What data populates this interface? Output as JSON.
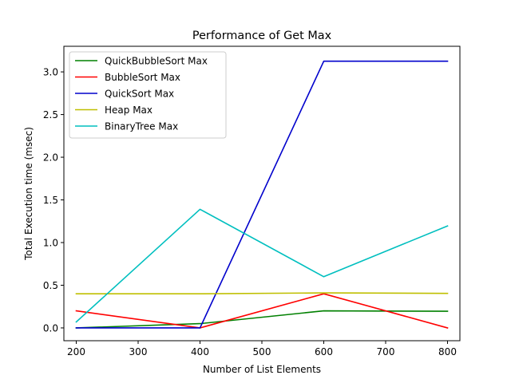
{
  "chart_data": {
    "type": "line",
    "title": "Performance of Get Max",
    "xlabel": "Number of List Elements",
    "ylabel": "Total Execution time (msec)",
    "x": [
      200,
      400,
      600,
      800
    ],
    "xlim": [
      180,
      820
    ],
    "ylim": [
      -0.15,
      3.3
    ],
    "xticks": [
      200,
      300,
      400,
      500,
      600,
      700,
      800
    ],
    "yticks": [
      0.0,
      0.5,
      1.0,
      1.5,
      2.0,
      2.5,
      3.0
    ],
    "xtick_labels": [
      "200",
      "300",
      "400",
      "500",
      "600",
      "700",
      "800"
    ],
    "ytick_labels": [
      "0.0",
      "0.5",
      "1.0",
      "1.5",
      "2.0",
      "2.5",
      "3.0"
    ],
    "grid": false,
    "legend": "top-left",
    "series": [
      {
        "name": "QuickBubbleSort Max",
        "color": "#008000",
        "values": [
          0.0,
          0.05,
          0.2,
          0.195
        ]
      },
      {
        "name": "BubbleSort Max",
        "color": "#ff0000",
        "values": [
          0.2,
          0.0,
          0.4,
          0.0
        ]
      },
      {
        "name": "QuickSort Max",
        "color": "#0000cc",
        "values": [
          0.0,
          0.0,
          3.125,
          3.125
        ]
      },
      {
        "name": "Heap Max",
        "color": "#bfbf00",
        "values": [
          0.4,
          0.4,
          0.41,
          0.405
        ]
      },
      {
        "name": "BinaryTree Max",
        "color": "#00bfbf",
        "values": [
          0.07,
          1.39,
          0.6,
          1.195
        ]
      }
    ]
  }
}
